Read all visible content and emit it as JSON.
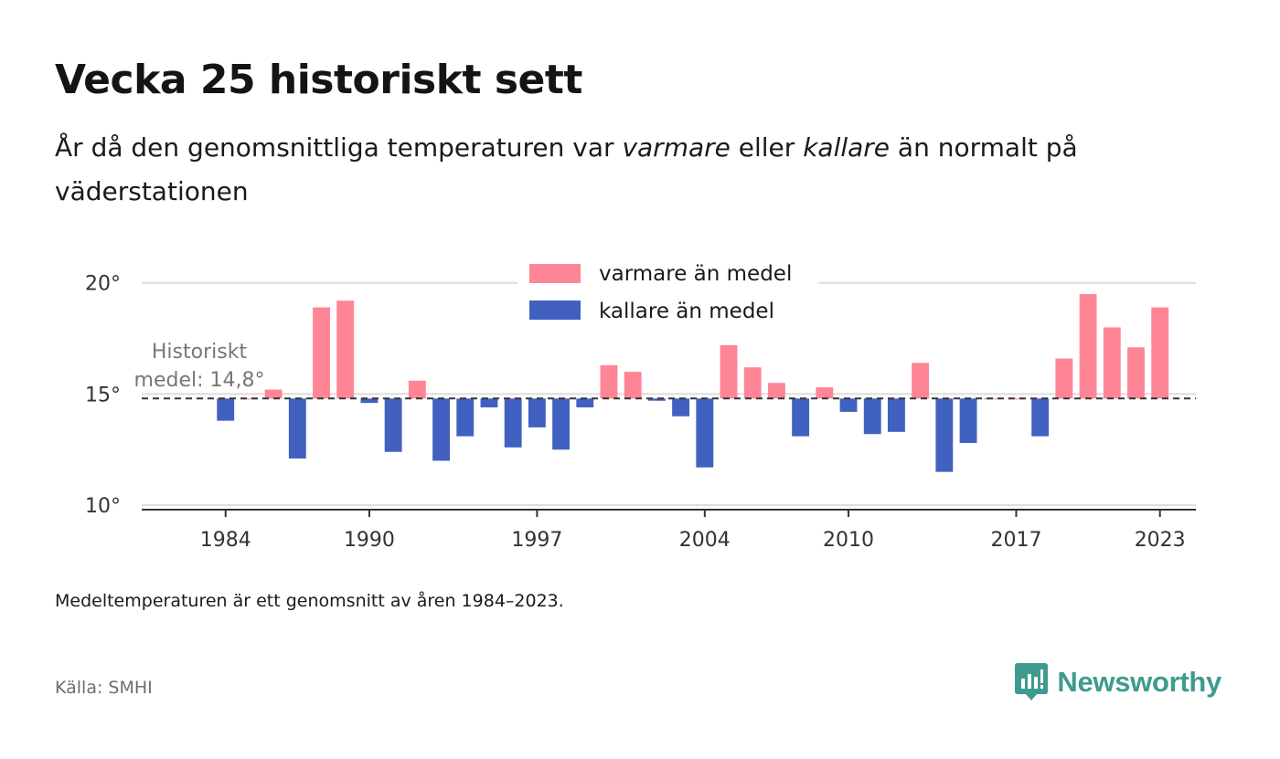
{
  "title": "Vecka 25 historiskt sett",
  "subtitle": {
    "part1": "År då den genomsnittliga temperaturen var ",
    "warm_word": "varmare",
    "part2": " eller ",
    "cold_word": "kallare",
    "part3": " än normalt på väderstationen"
  },
  "footnote": "Medeltemperaturen är ett genomsnitt av åren 1984–2023.",
  "source": "Källa: SMHI",
  "brand": {
    "name": "Newsworthy",
    "icon": "newsworthy-logo-icon",
    "color": "#3e9b8e"
  },
  "chart_data": {
    "type": "bar",
    "baseline": 14.8,
    "baseline_label_line1": "Historiskt",
    "baseline_label_line2": "medel: 14,8°",
    "ylim": [
      9.8,
      20.4
    ],
    "yticks": [
      10,
      15,
      20
    ],
    "ytick_labels": [
      "10°",
      "15°",
      "20°"
    ],
    "xlim": [
      1980.5,
      2024.5
    ],
    "xticks": [
      1984,
      1990,
      1997,
      2004,
      2010,
      2017,
      2023
    ],
    "xtick_labels": [
      "1984",
      "1990",
      "1997",
      "2004",
      "2010",
      "2017",
      "2023"
    ],
    "grid": true,
    "legend_placement": "top-center",
    "series": [
      {
        "name": "varmare än medel",
        "color": "#fe8595"
      },
      {
        "name": "kallare än medel",
        "color": "#4161c0"
      }
    ],
    "x": [
      1984,
      1985,
      1986,
      1987,
      1988,
      1989,
      1990,
      1991,
      1992,
      1993,
      1994,
      1995,
      1996,
      1997,
      1998,
      1999,
      2000,
      2001,
      2002,
      2003,
      2004,
      2005,
      2006,
      2007,
      2008,
      2009,
      2010,
      2011,
      2012,
      2013,
      2014,
      2015,
      2016,
      2017,
      2018,
      2019,
      2020,
      2021,
      2022,
      2023
    ],
    "values": [
      13.8,
      14.8,
      15.2,
      12.1,
      18.9,
      19.2,
      14.6,
      12.4,
      15.6,
      12.0,
      13.1,
      14.4,
      12.6,
      13.5,
      12.5,
      14.4,
      16.3,
      16.0,
      14.7,
      14.0,
      11.7,
      17.2,
      16.2,
      15.5,
      13.1,
      15.3,
      14.2,
      13.2,
      13.3,
      16.4,
      11.5,
      12.8,
      14.8,
      14.8,
      13.1,
      16.6,
      19.5,
      18.0,
      17.1,
      18.9
    ]
  }
}
